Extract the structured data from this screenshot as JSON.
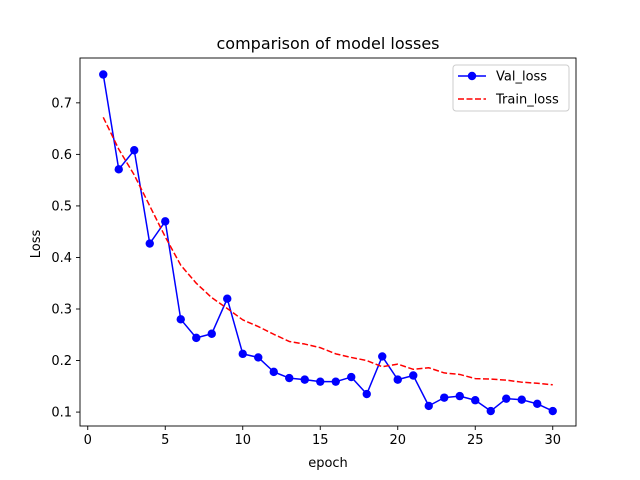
{
  "chart_data": {
    "type": "line",
    "title": "comparison of model losses",
    "xlabel": "epoch",
    "ylabel": "Loss",
    "xlim": [
      -0.5,
      31.5
    ],
    "ylim": [
      0.073,
      0.787
    ],
    "xticks": [
      0,
      5,
      10,
      15,
      20,
      25,
      30
    ],
    "yticks": [
      0.1,
      0.2,
      0.3,
      0.4,
      0.5,
      0.6,
      0.7
    ],
    "grid": false,
    "legend_position": "top-right",
    "x": [
      1,
      2,
      3,
      4,
      5,
      6,
      7,
      8,
      9,
      10,
      11,
      12,
      13,
      14,
      15,
      16,
      17,
      18,
      19,
      20,
      21,
      22,
      23,
      24,
      25,
      26,
      27,
      28,
      29,
      30
    ],
    "series": [
      {
        "name": "Val_loss",
        "style": "solid-with-circle-markers",
        "color": "#0000ff",
        "values": [
          0.755,
          0.571,
          0.608,
          0.427,
          0.47,
          0.28,
          0.244,
          0.252,
          0.32,
          0.213,
          0.206,
          0.178,
          0.166,
          0.163,
          0.159,
          0.159,
          0.168,
          0.135,
          0.208,
          0.163,
          0.171,
          0.112,
          0.128,
          0.131,
          0.123,
          0.102,
          0.126,
          0.124,
          0.116,
          0.102
        ]
      },
      {
        "name": "Train_loss",
        "style": "dashed",
        "color": "#ff0000",
        "values": [
          0.672,
          0.61,
          0.56,
          0.5,
          0.44,
          0.385,
          0.35,
          0.322,
          0.301,
          0.279,
          0.266,
          0.251,
          0.237,
          0.232,
          0.225,
          0.213,
          0.206,
          0.2,
          0.188,
          0.193,
          0.183,
          0.186,
          0.176,
          0.173,
          0.165,
          0.164,
          0.162,
          0.158,
          0.156,
          0.153
        ]
      }
    ]
  }
}
